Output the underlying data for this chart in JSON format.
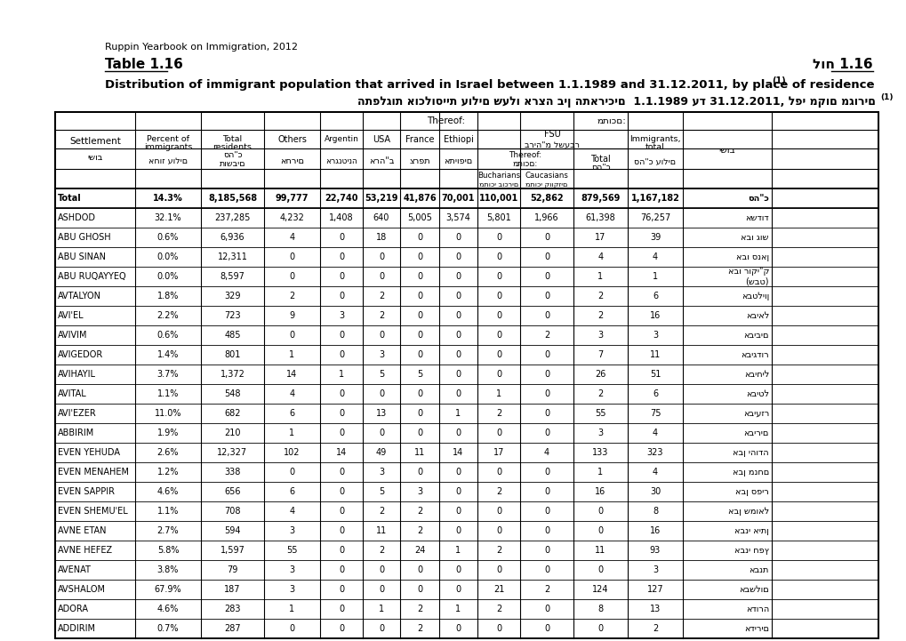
{
  "title_en": "Table 1.16",
  "title_he": "לוח 1.16",
  "subtitle_small": "Ruppin Yearbook on Immigration, 2012",
  "subtitle_en": "Distribution of immigrant population that arrived in Israel between 1.1.1989 and 31.12.2011, by place of residence",
  "subtitle_sup": "(1)",
  "subtitle_he": "התפלגות אוכלוסיית עולים שעלו ארצה בין התאריכים  1.1.1989 עד 31.12.2011, לפי מקום מגורים",
  "subtitle_he_sup": "(1)",
  "rows": [
    [
      "Total",
      "14.3%",
      "8,185,568",
      "99,777",
      "22,740",
      "53,219",
      "41,876",
      "70,001",
      "110,001",
      "52,862",
      "879,569",
      "1,167,182",
      "סה\"כ"
    ],
    [
      "ASHDOD",
      "32.1%",
      "237,285",
      "4,232",
      "1,408",
      "640",
      "5,005",
      "3,574",
      "5,801",
      "1,966",
      "61,398",
      "76,257",
      "אשדוד"
    ],
    [
      "ABU GHOSH",
      "0.6%",
      "6,936",
      "4",
      "0",
      "18",
      "0",
      "0",
      "0",
      "0",
      "17",
      "39",
      "אבו גוש"
    ],
    [
      "ABU SINAN",
      "0.0%",
      "12,311",
      "0",
      "0",
      "0",
      "0",
      "0",
      "0",
      "0",
      "4",
      "4",
      "אבו סנאן"
    ],
    [
      "ABU RUQAYYEQ",
      "0.0%",
      "8,597",
      "0",
      "0",
      "0",
      "0",
      "0",
      "0",
      "0",
      "1",
      "1",
      "אבו רוקי\"ק\n(שבט)"
    ],
    [
      "AVTALYON",
      "1.8%",
      "329",
      "2",
      "0",
      "2",
      "0",
      "0",
      "0",
      "0",
      "2",
      "6",
      "אבטליון"
    ],
    [
      "AVI'EL",
      "2.2%",
      "723",
      "9",
      "3",
      "2",
      "0",
      "0",
      "0",
      "0",
      "2",
      "16",
      "אביאל"
    ],
    [
      "AVIVIM",
      "0.6%",
      "485",
      "0",
      "0",
      "0",
      "0",
      "0",
      "0",
      "2",
      "3",
      "3",
      "אביבים"
    ],
    [
      "AVIGEDOR",
      "1.4%",
      "801",
      "1",
      "0",
      "3",
      "0",
      "0",
      "0",
      "0",
      "7",
      "11",
      "אביגדור"
    ],
    [
      "AVIHAYIL",
      "3.7%",
      "1,372",
      "14",
      "1",
      "5",
      "5",
      "0",
      "0",
      "0",
      "26",
      "51",
      "אביחיל"
    ],
    [
      "AVITAL",
      "1.1%",
      "548",
      "4",
      "0",
      "0",
      "0",
      "0",
      "1",
      "0",
      "2",
      "6",
      "אביטל"
    ],
    [
      "AVI'EZER",
      "11.0%",
      "682",
      "6",
      "0",
      "13",
      "0",
      "1",
      "2",
      "0",
      "55",
      "75",
      "אביעזר"
    ],
    [
      "ABBIRIM",
      "1.9%",
      "210",
      "1",
      "0",
      "0",
      "0",
      "0",
      "0",
      "0",
      "3",
      "4",
      "אבירים"
    ],
    [
      "EVEN YEHUDA",
      "2.6%",
      "12,327",
      "102",
      "14",
      "49",
      "11",
      "14",
      "17",
      "4",
      "133",
      "323",
      "אבן יהודה"
    ],
    [
      "EVEN MENAHEM",
      "1.2%",
      "338",
      "0",
      "0",
      "3",
      "0",
      "0",
      "0",
      "0",
      "1",
      "4",
      "אבן מנחם"
    ],
    [
      "EVEN SAPPIR",
      "4.6%",
      "656",
      "6",
      "0",
      "5",
      "3",
      "0",
      "2",
      "0",
      "16",
      "30",
      "אבן ספיר"
    ],
    [
      "EVEN SHEMU'EL",
      "1.1%",
      "708",
      "4",
      "0",
      "2",
      "2",
      "0",
      "0",
      "0",
      "0",
      "8",
      "אבן שמואל"
    ],
    [
      "AVNE ETAN",
      "2.7%",
      "594",
      "3",
      "0",
      "11",
      "2",
      "0",
      "0",
      "0",
      "0",
      "16",
      "אבני איתן"
    ],
    [
      "AVNE HEFEZ",
      "5.8%",
      "1,597",
      "55",
      "0",
      "2",
      "24",
      "1",
      "2",
      "0",
      "11",
      "93",
      "אבני חפץ"
    ],
    [
      "AVENAT",
      "3.8%",
      "79",
      "3",
      "0",
      "0",
      "0",
      "0",
      "0",
      "0",
      "0",
      "3",
      "אבנת"
    ],
    [
      "AVSHALOM",
      "67.9%",
      "187",
      "3",
      "0",
      "0",
      "0",
      "0",
      "21",
      "2",
      "124",
      "127",
      "אבשלום"
    ],
    [
      "ADORA",
      "4.6%",
      "283",
      "1",
      "0",
      "1",
      "2",
      "1",
      "2",
      "0",
      "8",
      "13",
      "אדורה"
    ],
    [
      "ADDIRIM",
      "0.7%",
      "287",
      "0",
      "0",
      "0",
      "2",
      "0",
      "0",
      "0",
      "0",
      "2",
      "אדירים"
    ]
  ]
}
